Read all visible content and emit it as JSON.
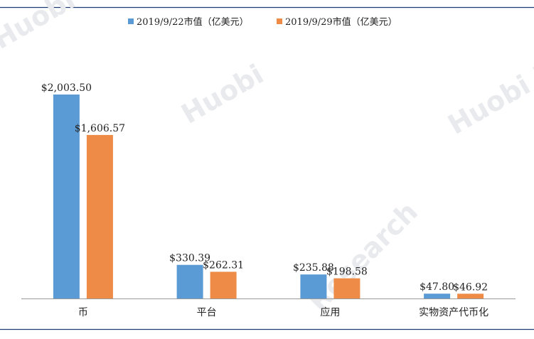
{
  "colors": {
    "series_1": "#5b9bd5",
    "series_2": "#ed8b47",
    "axis": "#9a9a9a",
    "frame_top": "#1f3a73",
    "frame_bottom": "#1f3a73",
    "watermark": "#e9eaee"
  },
  "watermark": {
    "text_1": "Huobi Research",
    "text_2": "Huobi",
    "text_3": "Research",
    "text_4": "Huobi Research"
  },
  "chart_data": {
    "type": "bar",
    "title": "",
    "xlabel": "",
    "ylabel": "",
    "grid": false,
    "legend_position": "top-center",
    "categories": [
      "币",
      "平台",
      "应用",
      "实物资产代币化"
    ],
    "series": [
      {
        "name": "2019/9/22市值（亿美元）",
        "values": [
          2003.5,
          330.39,
          235.88,
          47.8
        ],
        "labels": [
          "$2,003.50",
          "$330.39",
          "$235.88",
          "$47.80"
        ]
      },
      {
        "name": "2019/9/29市值（亿美元）",
        "values": [
          1606.57,
          262.31,
          198.58,
          46.92
        ],
        "labels": [
          "$1,606.57",
          "$262.31",
          "$198.58",
          "$46.92"
        ]
      }
    ],
    "ylim": [
      0,
      2003.5
    ]
  }
}
